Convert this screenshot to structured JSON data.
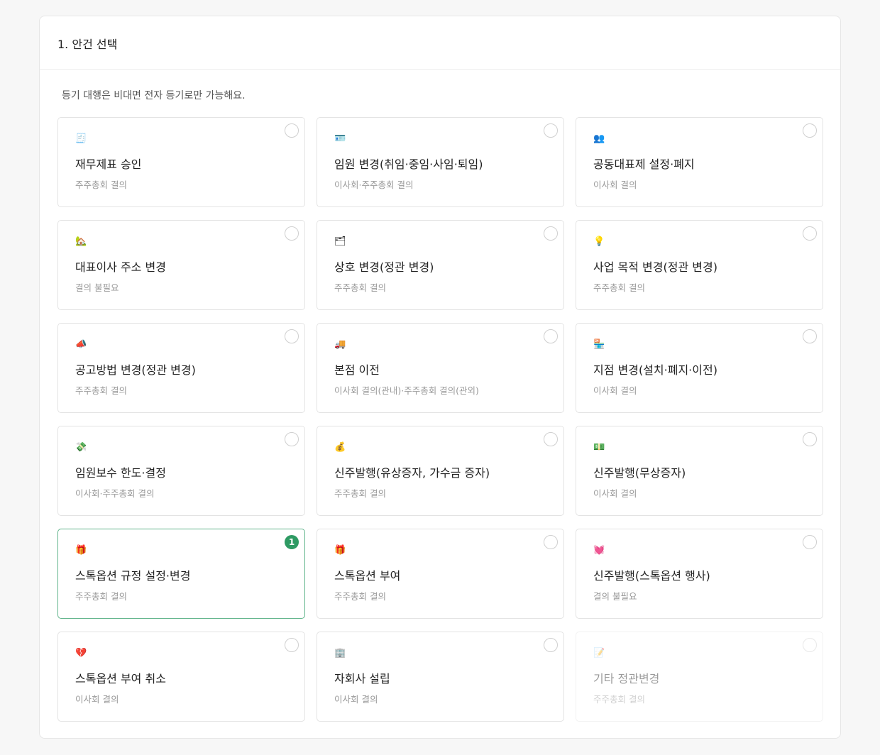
{
  "section": {
    "title": "1. 안건 선택",
    "notice": "등기 대행은 비대면 전자 등기로만 가능해요."
  },
  "accent": "#2e9a63",
  "items": [
    {
      "icon": "stamp-icon",
      "glyph": "🧾",
      "title": "재무제표 승인",
      "sub": "주주총회 결의"
    },
    {
      "icon": "id-card-icon",
      "glyph": "🪪",
      "title": "임원 변경(취임·중임·사임·퇴임)",
      "sub": "이사회·주주총회 결의"
    },
    {
      "icon": "people-icon",
      "glyph": "👥",
      "title": "공동대표제 설정·폐지",
      "sub": "이사회 결의"
    },
    {
      "icon": "house-icon",
      "glyph": "🏡",
      "title": "대표이사 주소 변경",
      "sub": "결의 불필요"
    },
    {
      "icon": "card-icon",
      "glyph": "🗂",
      "title": "상호 변경(정관 변경)",
      "sub": "주주총회 결의"
    },
    {
      "icon": "light-bulb-icon",
      "glyph": "💡",
      "title": "사업 목적 변경(정관 변경)",
      "sub": "주주총회 결의"
    },
    {
      "icon": "megaphone-icon",
      "glyph": "📣",
      "title": "공고방법 변경(정관 변경)",
      "sub": "주주총회 결의"
    },
    {
      "icon": "truck-icon",
      "glyph": "🚚",
      "title": "본점 이전",
      "sub": "이사회 결의(관내)·주주총회 결의(관외)"
    },
    {
      "icon": "store-icon",
      "glyph": "🏪",
      "title": "지점 변경(설치·폐지·이전)",
      "sub": "이사회 결의"
    },
    {
      "icon": "money-wings-icon",
      "glyph": "💸",
      "title": "임원보수 한도·결정",
      "sub": "이사회·주주총회 결의"
    },
    {
      "icon": "money-bag-icon",
      "glyph": "💰",
      "title": "신주발행(유상증자, 가수금 증자)",
      "sub": "주주총회 결의"
    },
    {
      "icon": "banknote-icon",
      "glyph": "💵",
      "title": "신주발행(무상증자)",
      "sub": "이사회 결의"
    },
    {
      "icon": "gift-icon",
      "glyph": "🎁",
      "title": "스톡옵션 규정 설정·변경",
      "sub": "주주총회 결의",
      "selected": "1"
    },
    {
      "icon": "gift-icon",
      "glyph": "🎁",
      "title": "스톡옵션 부여",
      "sub": "주주총회 결의"
    },
    {
      "icon": "heart-icon",
      "glyph": "💓",
      "title": "신주발행(스톡옵션 행사)",
      "sub": "결의 불필요"
    },
    {
      "icon": "broken-heart-icon",
      "glyph": "💔",
      "title": "스톡옵션 부여 취소",
      "sub": "이사회 결의"
    },
    {
      "icon": "building-icon",
      "glyph": "🏢",
      "title": "자회사 설립",
      "sub": "이사회 결의"
    },
    {
      "icon": "memo-icon",
      "glyph": "📝",
      "title": "기타 정관변경",
      "sub": "주주총회 결의",
      "disabled": true
    }
  ]
}
